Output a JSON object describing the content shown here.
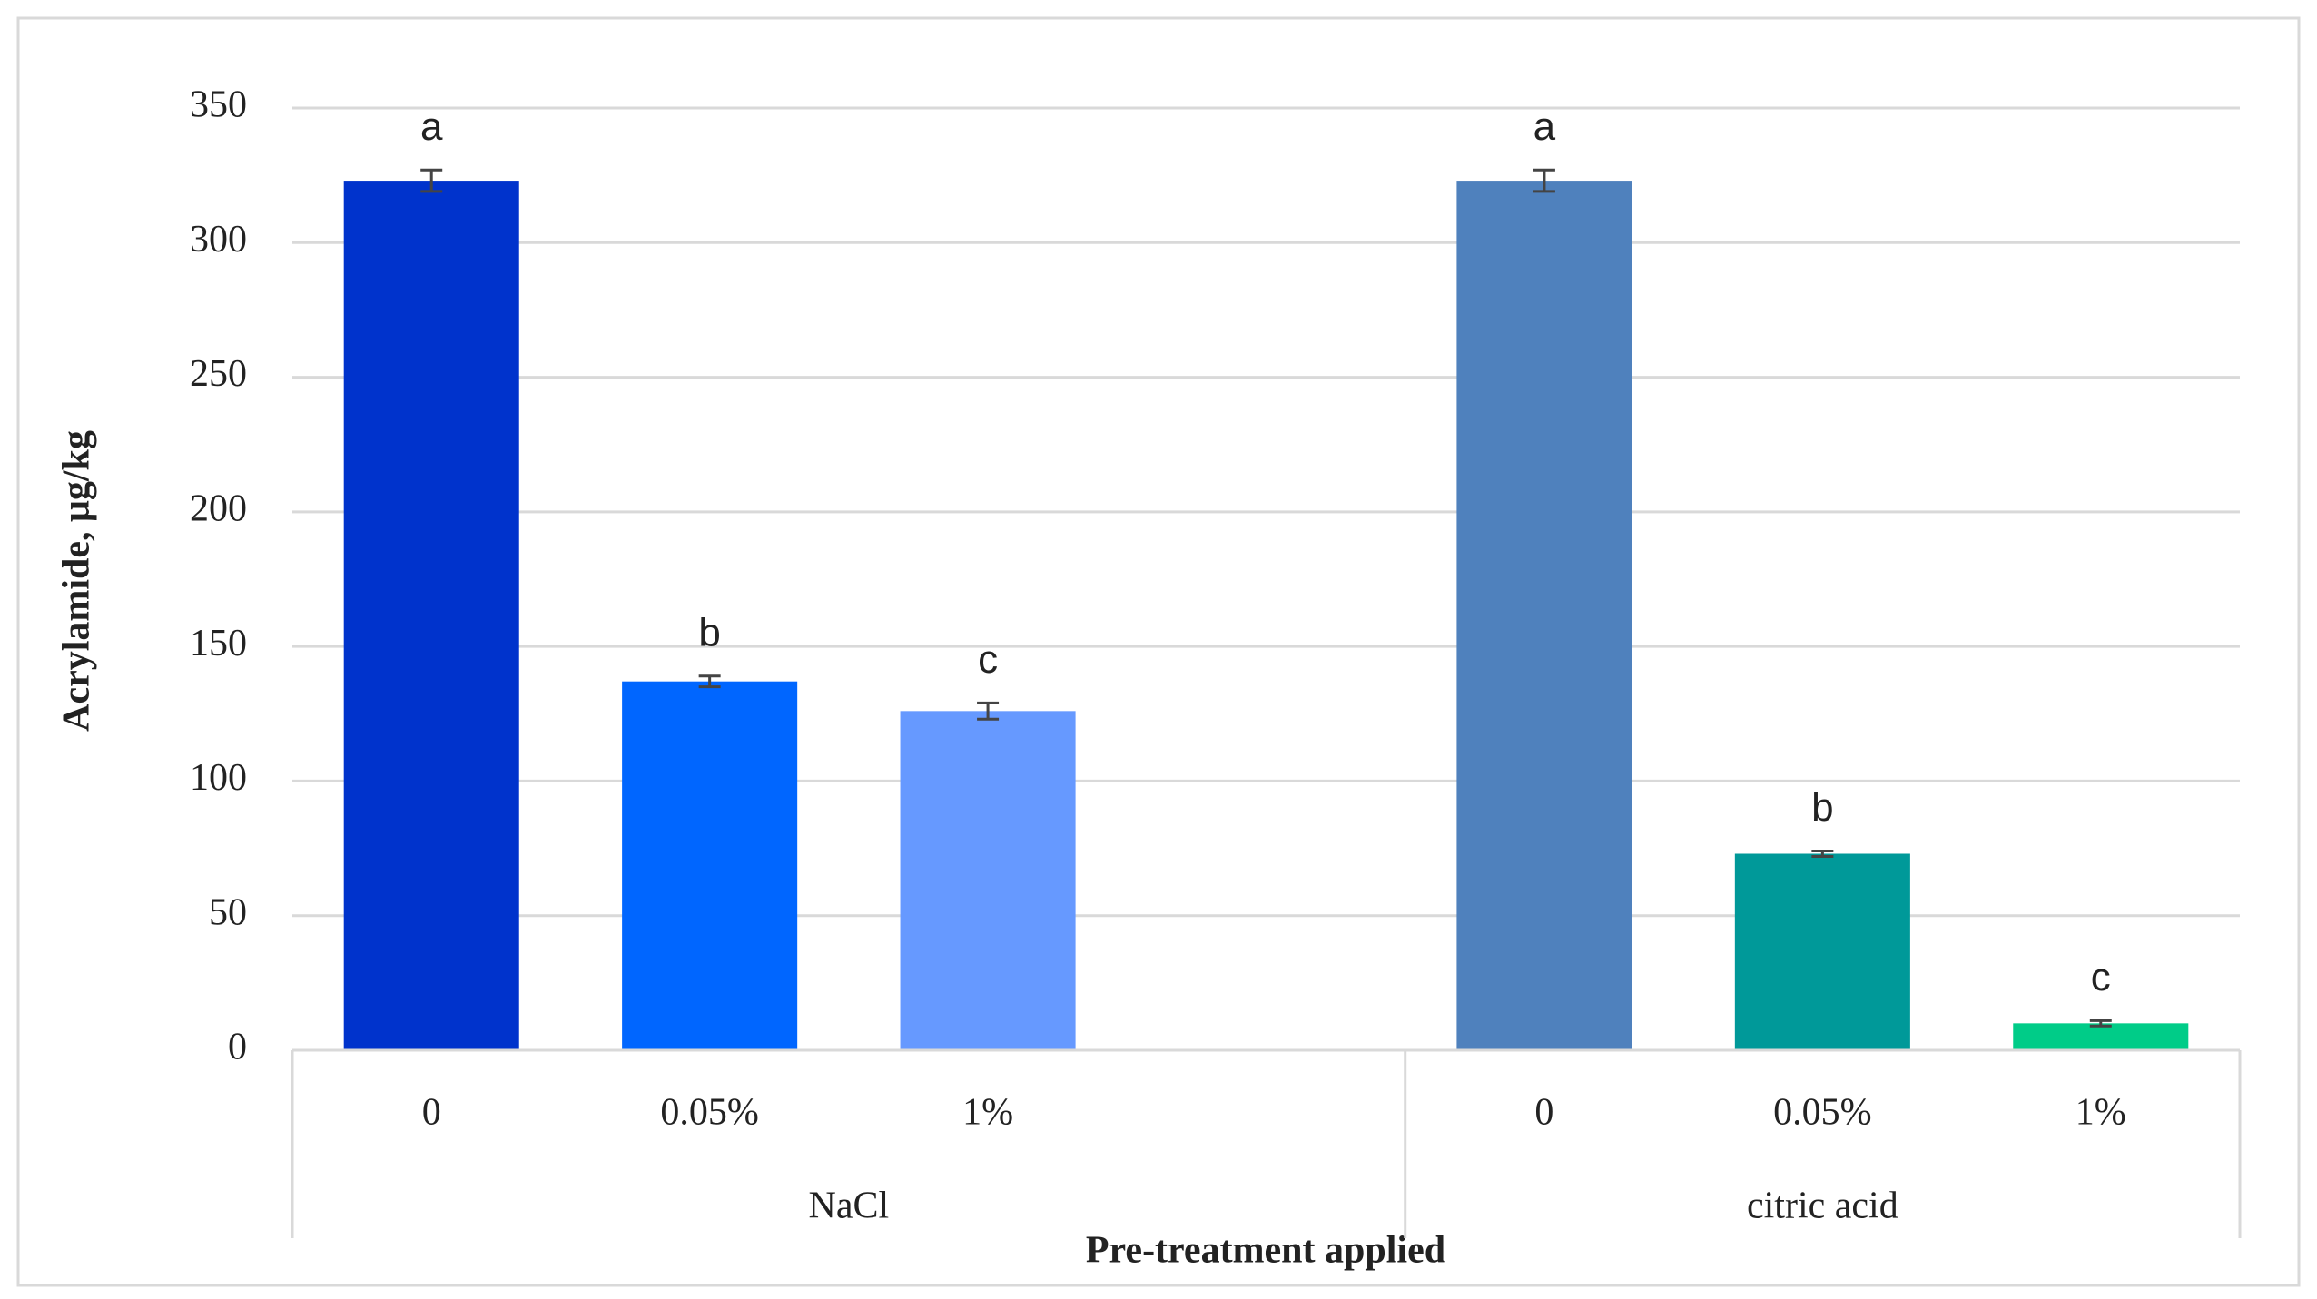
{
  "chart_data": {
    "type": "bar",
    "y_label": "Acrylamide, μg/kg",
    "x_label": "Pre-treatment applied",
    "categories": [
      "0",
      "0.05%",
      "1%",
      null,
      "0",
      "0.05%",
      "1%"
    ],
    "groups": [
      "NaCl",
      "citric acid"
    ],
    "values": [
      323,
      137,
      126,
      null,
      323,
      73,
      10
    ],
    "errors": [
      4,
      2,
      3,
      null,
      4,
      1,
      1
    ],
    "annotations": [
      "a",
      "b",
      "c",
      null,
      "a",
      "b",
      "c"
    ],
    "colors": [
      "#0033cc",
      "#0066ff",
      "#6699ff",
      null,
      "#4f81bd",
      "#009999",
      "#00cc88"
    ],
    "ylim": [
      0,
      350
    ],
    "yticks": [
      0,
      50,
      100,
      150,
      200,
      250,
      300,
      350
    ],
    "grid": true
  }
}
